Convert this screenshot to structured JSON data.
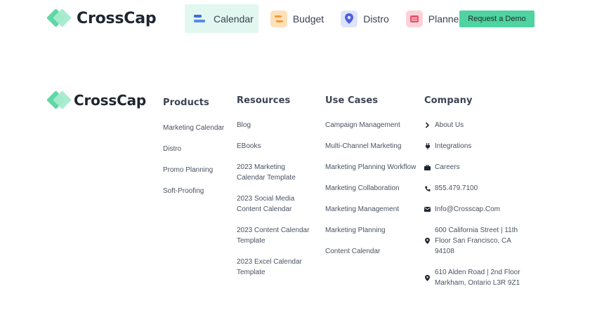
{
  "brand": {
    "name": "CrossCap"
  },
  "nav": {
    "items": [
      {
        "label": "Calendar",
        "icon": "calendar-icon",
        "active": true
      },
      {
        "label": "Budget",
        "icon": "budget-icon",
        "active": false
      },
      {
        "label": "Distro",
        "icon": "distro-icon",
        "active": false
      },
      {
        "label": "Planner",
        "icon": "planner-icon",
        "active": false
      }
    ],
    "cta": "Request a Demo"
  },
  "footer": {
    "products": {
      "title": "Products",
      "links": [
        "Marketing Calendar",
        "Distro",
        "Promo Planning",
        "Soft-Proofing"
      ]
    },
    "resources": {
      "title": "Resources",
      "links": [
        "Blog",
        "EBooks",
        "2023 Marketing Calendar Template",
        "2023 Social Media Content Calendar",
        "2023 Content Calendar Template",
        "2023 Excel Calendar Template"
      ]
    },
    "use_cases": {
      "title": "Use Cases",
      "links": [
        "Campaign Management",
        "Multi-Channel Marketing",
        "Marketing Planning Workflow",
        "Marketing Collaboration",
        "Marketing Management",
        "Marketing Planning",
        "Content Calendar"
      ]
    },
    "company": {
      "title": "Company",
      "items": [
        {
          "label": "About Us",
          "icon": "chevron-right-icon"
        },
        {
          "label": "Integrations",
          "icon": "plug-icon"
        },
        {
          "label": "Careers",
          "icon": "briefcase-icon"
        },
        {
          "label": "855.479.7100",
          "icon": "phone-icon"
        },
        {
          "label": "Info@Crosscap.Com",
          "icon": "envelope-icon"
        },
        {
          "label": "600 California Street | 11th Floor San Francisco, CA 94108",
          "icon": "map-pin-icon"
        },
        {
          "label": "610 Alden Road | 2nd Floor Markham, Ontario L3R 9Z1",
          "icon": "map-pin-icon"
        }
      ]
    }
  },
  "colors": {
    "accent": "#4fd3a1",
    "active_bg": "#e2f7f0",
    "text": "#2b3440"
  }
}
